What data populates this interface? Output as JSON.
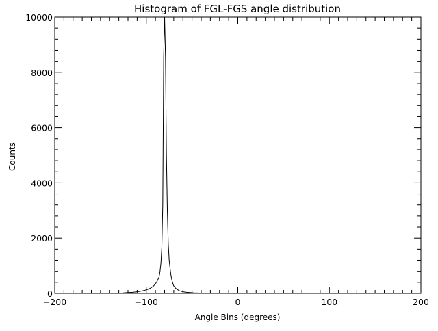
{
  "chart_data": {
    "type": "line",
    "title": "Histogram of FGL-FGS angle distribution",
    "xlabel": "Angle Bins (degrees)",
    "ylabel": "Counts",
    "xlim": [
      -200,
      200
    ],
    "ylim": [
      0,
      10000
    ],
    "x_ticks": [
      -200,
      -100,
      0,
      100,
      200
    ],
    "x_tick_labels": [
      "−200",
      "−100",
      "0",
      "100",
      "200"
    ],
    "y_ticks": [
      0,
      2000,
      4000,
      6000,
      8000,
      10000
    ],
    "y_tick_labels": [
      "0",
      "2000",
      "4000",
      "6000",
      "8000",
      "10000"
    ],
    "x_minor_step": 10,
    "y_minor_step": 400,
    "grid": false,
    "legend": "none",
    "series": [
      {
        "name": "Counts",
        "style": "histogram",
        "color": "#000000",
        "x": [
          -130,
          -125,
          -120,
          -115,
          -110,
          -106,
          -102,
          -98,
          -95,
          -92,
          -90,
          -88,
          -86,
          -85,
          -84,
          -83,
          -82,
          -81,
          -80,
          -79,
          -78,
          -77,
          -76,
          -75,
          -74,
          -73,
          -72,
          -71,
          -70,
          -68,
          -66,
          -64,
          -62,
          -60,
          -56,
          -52,
          -48,
          -44,
          -40,
          -35,
          -30,
          -25,
          -20
        ],
        "values": [
          0,
          20,
          30,
          40,
          60,
          80,
          110,
          150,
          200,
          270,
          350,
          450,
          600,
          800,
          1100,
          1700,
          3200,
          8600,
          10000,
          8500,
          5000,
          3000,
          1800,
          1200,
          900,
          650,
          480,
          360,
          270,
          190,
          140,
          100,
          80,
          60,
          40,
          30,
          20,
          15,
          10,
          8,
          5,
          3,
          0
        ]
      }
    ]
  }
}
